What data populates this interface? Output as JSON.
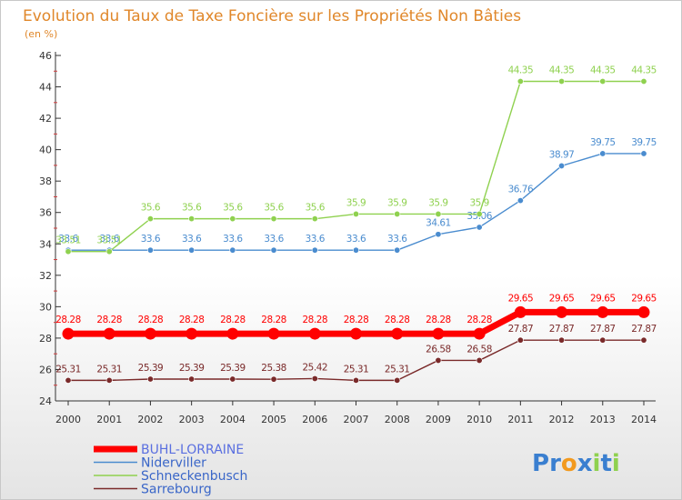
{
  "chart_data": {
    "type": "line",
    "title": "Evolution du Taux de Taxe Foncière sur les Propriétés Non Bâties",
    "ylabel": "(en %)",
    "xlabel": "",
    "ylim": [
      24,
      46
    ],
    "yticks": [
      24,
      26,
      28,
      30,
      32,
      34,
      36,
      38,
      40,
      42,
      44,
      46
    ],
    "x": [
      "2000",
      "2001",
      "2002",
      "2003",
      "2004",
      "2005",
      "2006",
      "2007",
      "2008",
      "2009",
      "2010",
      "2011",
      "2012",
      "2013",
      "2014"
    ],
    "grid": false,
    "legend_position": "bottom-left",
    "series": [
      {
        "name": "BUHL-LORRAINE",
        "color": "#ff0000",
        "highlight": true,
        "values": [
          28.28,
          28.28,
          28.28,
          28.28,
          28.28,
          28.28,
          28.28,
          28.28,
          28.28,
          28.28,
          28.28,
          29.65,
          29.65,
          29.65,
          29.65
        ],
        "labels": [
          "28.28",
          "28.28",
          "28.28",
          "28.28",
          "28.28",
          "28.28",
          "28.28",
          "28.28",
          "28.28",
          "28.28",
          "28.28",
          "29.65",
          "29.65",
          "29.65",
          "29.65"
        ]
      },
      {
        "name": "Niderviller",
        "color": "#4a8ccf",
        "highlight": false,
        "values": [
          33.6,
          33.6,
          33.6,
          33.6,
          33.6,
          33.6,
          33.6,
          33.6,
          33.6,
          34.61,
          35.06,
          36.76,
          38.97,
          39.75,
          39.75
        ],
        "labels": [
          "33.6",
          "33.6",
          "33.6",
          "33.6",
          "33.6",
          "33.6",
          "33.6",
          "33.6",
          "33.6",
          "34.61",
          "35.06",
          "36.76",
          "38.97",
          "39.75",
          "39.75"
        ]
      },
      {
        "name": "Schneckenbusch",
        "color": "#8fd14f",
        "highlight": false,
        "values": [
          33.51,
          33.51,
          35.6,
          35.6,
          35.6,
          35.6,
          35.6,
          35.9,
          35.9,
          35.9,
          35.9,
          44.35,
          44.35,
          44.35,
          44.35
        ],
        "labels": [
          "33.51",
          "33.51",
          "35.6",
          "35.6",
          "35.6",
          "35.6",
          "35.6",
          "35.9",
          "35.9",
          "35.9",
          "35.9",
          "44.35",
          "44.35",
          "44.35",
          "44.35"
        ]
      },
      {
        "name": "Sarrebourg",
        "color": "#7a2a2a",
        "highlight": false,
        "values": [
          25.31,
          25.31,
          25.39,
          25.39,
          25.39,
          25.38,
          25.42,
          25.31,
          25.31,
          26.58,
          26.58,
          27.87,
          27.87,
          27.87,
          27.87
        ],
        "labels": [
          "25.31",
          "25.31",
          "25.39",
          "25.39",
          "25.39",
          "25.38",
          "25.42",
          "25.31",
          "25.31",
          "26.58",
          "26.58",
          "27.87",
          "27.87",
          "27.87",
          "27.87"
        ]
      }
    ]
  },
  "branding": {
    "logo_letters": [
      "P",
      "r",
      "o",
      "x",
      "i",
      "t",
      "i"
    ],
    "logo_colors": [
      "#3a7fd0",
      "#3a7fd0",
      "#f29a1f",
      "#3a7fd0",
      "#8fd14f",
      "#3a7fd0",
      "#8fd14f"
    ]
  }
}
